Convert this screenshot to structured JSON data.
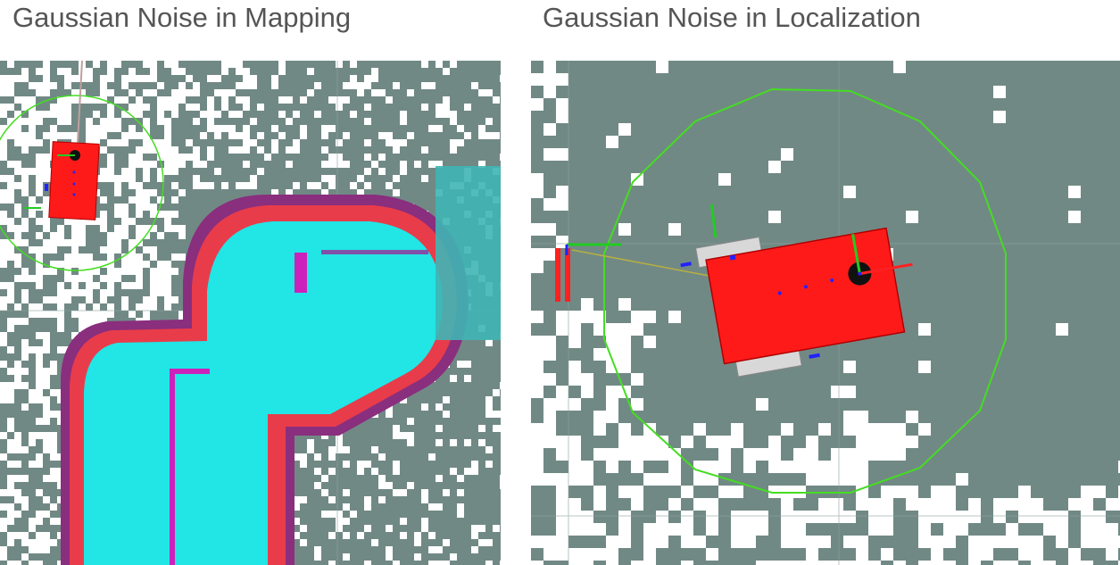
{
  "panels": [
    {
      "title": "Gaussian Noise in Mapping",
      "colors": {
        "occupancy_background": "#718985",
        "free_space": "#ffffff",
        "costmap_cyan": "#22e5e5",
        "inflation_red": "#e83c4a",
        "inflation_purple": "#8a2e7e",
        "obstacle_magenta": "#cc22bb",
        "robot_body": "#ff1a1a",
        "footprint_circle": "#44dd22"
      },
      "icons": [
        "robot-icon",
        "footprint-circle",
        "costmap-overlay",
        "occupancy-grid"
      ]
    },
    {
      "title": "Gaussian Noise in Localization",
      "colors": {
        "occupancy_background": "#718985",
        "free_space": "#ffffff",
        "robot_body": "#ff1a1a",
        "footprint_circle": "#44dd22",
        "axis_x": "#ff2020",
        "axis_y": "#22cc22",
        "axis_z": "#2222ff"
      },
      "icons": [
        "robot-icon",
        "footprint-circle",
        "tf-frame-icon",
        "occupancy-grid"
      ]
    }
  ]
}
